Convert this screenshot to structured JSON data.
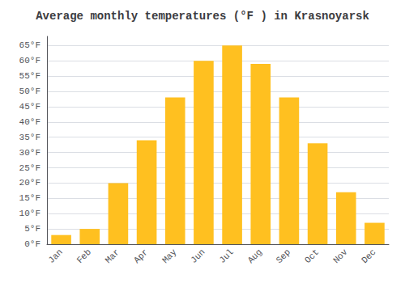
{
  "chart_data": {
    "type": "bar",
    "title": "Average monthly temperatures (°F ) in Krasnoyarsk",
    "categories": [
      "Jan",
      "Feb",
      "Mar",
      "Apr",
      "May",
      "Jun",
      "Jul",
      "Aug",
      "Sep",
      "Oct",
      "Nov",
      "Dec"
    ],
    "values": [
      3,
      5,
      20,
      34,
      48,
      60,
      65,
      59,
      48,
      33,
      17,
      7
    ],
    "color": "#FFC020",
    "ylim": [
      0,
      68
    ],
    "yticks": [
      {
        "value": 0,
        "label": "0°F"
      },
      {
        "value": 5,
        "label": "5°F"
      },
      {
        "value": 10,
        "label": "10°F"
      },
      {
        "value": 15,
        "label": "15°F"
      },
      {
        "value": 20,
        "label": "20°F"
      },
      {
        "value": 25,
        "label": "25°F"
      },
      {
        "value": 30,
        "label": "30°F"
      },
      {
        "value": 35,
        "label": "35°F"
      },
      {
        "value": 40,
        "label": "40°F"
      },
      {
        "value": 45,
        "label": "45°F"
      },
      {
        "value": 50,
        "label": "50°F"
      },
      {
        "value": 55,
        "label": "55°F"
      },
      {
        "value": 60,
        "label": "60°F"
      },
      {
        "value": 65,
        "label": "65°F"
      }
    ],
    "grid": true
  }
}
